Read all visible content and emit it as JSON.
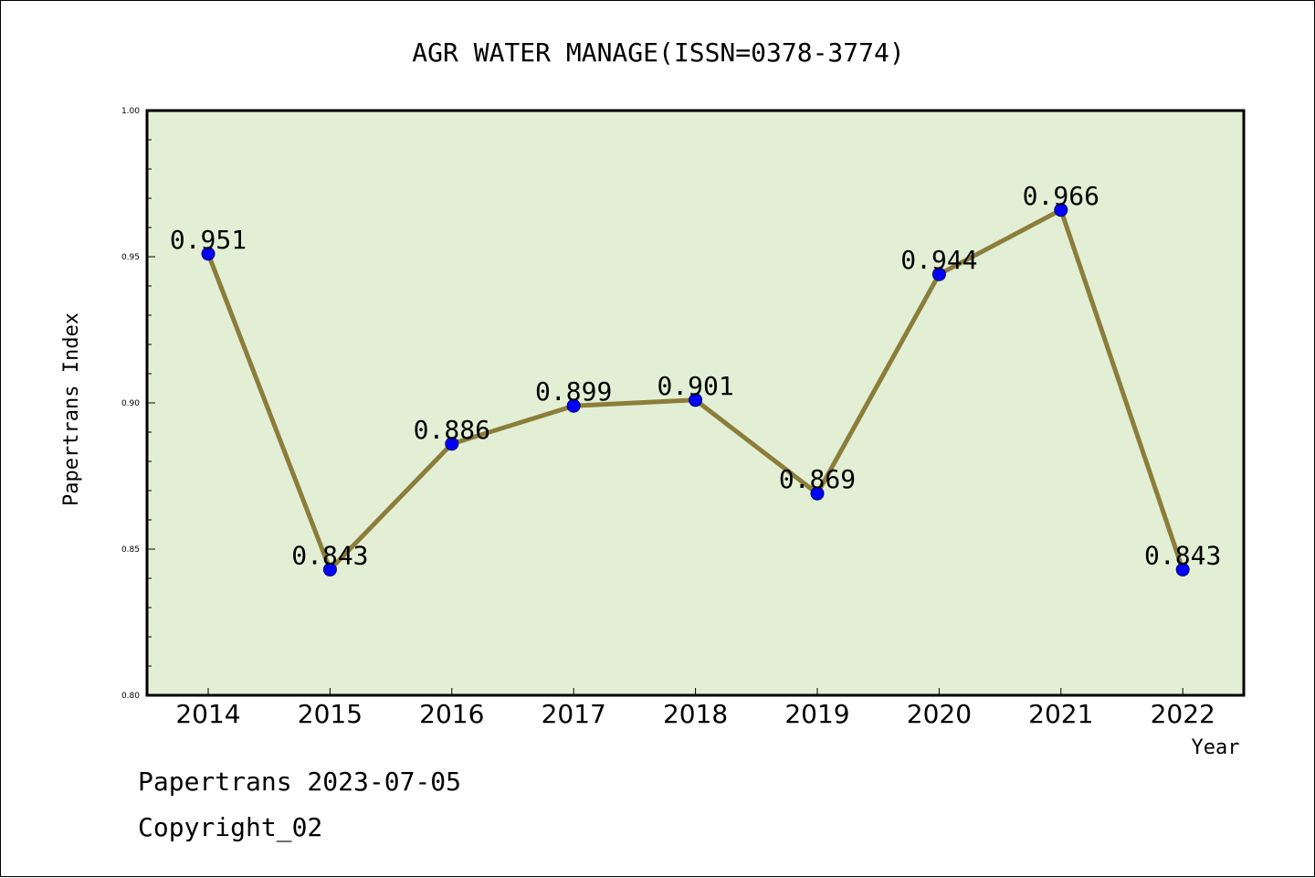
{
  "chart_data": {
    "type": "line",
    "title": "AGR WATER MANAGE(ISSN=0378-3774)",
    "xlabel": "Year",
    "ylabel": "Papertrans Index",
    "categories": [
      "2014",
      "2015",
      "2016",
      "2017",
      "2018",
      "2019",
      "2020",
      "2021",
      "2022"
    ],
    "values": [
      0.951,
      0.843,
      0.886,
      0.899,
      0.901,
      0.869,
      0.944,
      0.966,
      0.843
    ],
    "data_labels": [
      "0.951",
      "0.843",
      "0.886",
      "0.899",
      "0.901",
      "0.869",
      "0.944",
      "0.966",
      "0.843"
    ],
    "ylim": [
      0.8,
      1.0
    ],
    "yticks": [
      "0.80",
      "0.85",
      "0.90",
      "0.95",
      "1.00"
    ],
    "grid": false,
    "colors": {
      "plot_background": "#e2efd5",
      "line": "#8b7d3a",
      "marker": "#0000ff"
    }
  },
  "footer": {
    "line1": "Papertrans 2023-07-05",
    "line2": "Copyright_02"
  }
}
